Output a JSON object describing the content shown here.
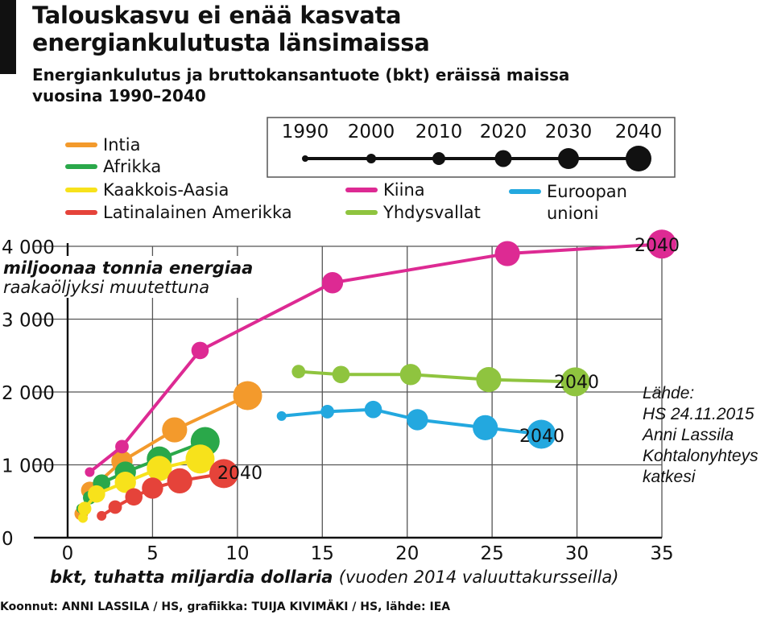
{
  "header": {
    "title_line1": "Talouskasvu ei enää kasvata",
    "title_line2": "energiankulutusta länsimaissa",
    "subtitle_line1": "Energiankulutus ja bruttokansantuote (bkt) eräissä maissa",
    "subtitle_line2": "vuosina 1990–2040"
  },
  "source_note": {
    "line1": "Lähde:",
    "line2": "HS 24.11.2015",
    "line3": "Anni Lassila",
    "line4": "Kohtalonyhteys",
    "line5": "katkesi"
  },
  "credits": "Koonnut: ANNI LASSILA / HS, grafiikka: TUIJA KIVIMÄKI / HS, lähde: IEA",
  "chart_data": {
    "type": "scatter",
    "ylabel_line1": "miljoonaa tonnia energiaa",
    "ylabel_line2": "raakaöljyksi muutettuna",
    "xlabel_bold": "bkt, tuhatta miljardia dollaria",
    "xlabel_rest": "(vuoden 2014 valuuttakursseilla)",
    "xlim": [
      0,
      35
    ],
    "ylim": [
      0,
      4000
    ],
    "x_ticks": [
      0,
      5,
      10,
      15,
      20,
      25,
      30,
      35
    ],
    "x_tick_labels": [
      "0",
      "5",
      "10",
      "15",
      "20",
      "25",
      "30",
      "35"
    ],
    "y_ticks": [
      0,
      1000,
      2000,
      3000,
      4000
    ],
    "y_tick_labels": [
      "0",
      "1 000",
      "2 000",
      "3 000",
      "4 000"
    ],
    "grid": true,
    "years": [
      1990,
      2000,
      2010,
      2020,
      2030,
      2040
    ],
    "year_legend_labels": [
      "1990",
      "2000",
      "2010",
      "2020",
      "2030",
      "2040"
    ],
    "end_label": "2040",
    "series": [
      {
        "name": "Intia",
        "color": "#f39a2c",
        "x": [
          0.8,
          1.3,
          3.2,
          6.3,
          10.6
        ],
        "y": [
          330,
          650,
          1050,
          1480,
          1950
        ]
      },
      {
        "name": "Afrikka",
        "color": "#2aa84a",
        "x": [
          0.8,
          1.3,
          2.0,
          3.4,
          5.4,
          8.1
        ],
        "y": [
          400,
          550,
          750,
          900,
          1080,
          1320
        ]
      },
      {
        "name": "Kaakkois-Aasia",
        "color": "#f7e21b",
        "x": [
          0.9,
          1.0,
          1.7,
          3.4,
          5.4,
          7.8
        ],
        "y": [
          270,
          400,
          600,
          760,
          950,
          1080
        ]
      },
      {
        "name": "Latinalainen Amerikka",
        "color": "#e5433a",
        "x": [
          2.0,
          2.8,
          3.9,
          5.0,
          6.6,
          9.2
        ],
        "y": [
          300,
          420,
          560,
          680,
          780,
          880
        ]
      },
      {
        "name": "Kiina",
        "color": "#dd2a93",
        "x": [
          1.3,
          3.2,
          7.8,
          15.6,
          25.9,
          35.0
        ],
        "y": [
          900,
          1250,
          2570,
          3500,
          3900,
          4030
        ]
      },
      {
        "name": "Yhdysvallat",
        "color": "#8fc43f",
        "x": [
          13.6,
          16.1,
          20.2,
          24.8,
          29.9
        ],
        "y": [
          2280,
          2240,
          2240,
          2170,
          2140
        ]
      },
      {
        "name": "Euroopan unioni",
        "color": "#23a8df",
        "x": [
          12.6,
          15.3,
          18.0,
          20.6,
          24.6,
          27.9
        ],
        "y": [
          1670,
          1730,
          1760,
          1620,
          1510,
          1420
        ]
      }
    ],
    "legend": [
      {
        "label": "Intia",
        "color": "#f39a2c"
      },
      {
        "label": "Afrikka",
        "color": "#2aa84a"
      },
      {
        "label": "Kaakkois-Aasia",
        "color": "#f7e21b"
      },
      {
        "label": "Latinalainen Amerikka",
        "color": "#e5433a"
      },
      {
        "label": "Kiina",
        "color": "#dd2a93"
      },
      {
        "label": "Yhdysvallat",
        "color": "#8fc43f"
      },
      {
        "label": "Euroopan",
        "label2": "unioni",
        "color": "#23a8df"
      }
    ]
  }
}
